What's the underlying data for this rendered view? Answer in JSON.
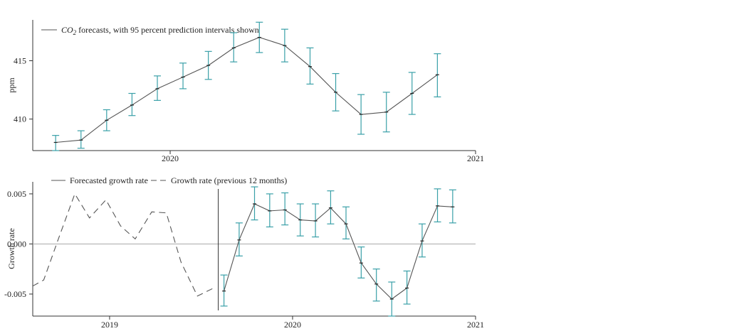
{
  "chart_data": [
    {
      "type": "line",
      "title": "",
      "legend": {
        "text_main": "CO",
        "text_sub": "2",
        "text_rest": " forecasts, with 95 percent prediction intervals shown",
        "placement": "top-left",
        "color": "#555555"
      },
      "ylabel": "ppm",
      "xlabel": "",
      "ylim": [
        407.3,
        418.5
      ],
      "xlim": [
        2019.55,
        2021.0
      ],
      "x_ticks": [
        {
          "value": 2020,
          "label": "2020"
        },
        {
          "value": 2021,
          "label": "2021"
        }
      ],
      "y_ticks": [
        {
          "value": 410,
          "label": "410"
        },
        {
          "value": 415,
          "label": "415"
        }
      ],
      "error_color": "#3aa0a8",
      "series": [
        {
          "name": "CO2 forecasts",
          "x": [
            2019.625,
            2019.708,
            2019.792,
            2019.875,
            2019.958,
            2020.042,
            2020.125,
            2020.208,
            2020.292,
            2020.375,
            2020.458,
            2020.542,
            2020.625,
            2020.708,
            2020.792,
            2020.875
          ],
          "values": [
            408.0,
            408.2,
            409.9,
            411.2,
            412.6,
            413.6,
            414.6,
            416.1,
            417.0,
            416.3,
            414.5,
            412.3,
            410.4,
            410.6,
            412.2,
            413.8
          ],
          "lower": [
            407.3,
            407.5,
            409.0,
            410.3,
            411.6,
            412.6,
            413.4,
            414.9,
            415.7,
            414.9,
            413.0,
            410.7,
            408.7,
            408.9,
            410.4,
            411.9
          ],
          "upper": [
            408.6,
            409.0,
            410.8,
            412.2,
            413.7,
            414.8,
            415.8,
            417.4,
            418.3,
            417.7,
            416.1,
            413.9,
            412.1,
            412.3,
            414.0,
            415.6
          ]
        }
      ]
    },
    {
      "type": "line",
      "title": "",
      "legend": {
        "entries": [
          {
            "label": "Forecasted growth rate",
            "style": "solid"
          },
          {
            "label": "Growth rate (previous 12 months)",
            "style": "dashed"
          }
        ],
        "placement": "top-left"
      },
      "ylabel": "Growth rate",
      "xlabel": "",
      "ylim": [
        -0.0072,
        0.0062
      ],
      "xlim": [
        2018.58,
        2021.0
      ],
      "x_ticks": [
        {
          "value": 2019,
          "label": "2019"
        },
        {
          "value": 2020,
          "label": "2020"
        },
        {
          "value": 2021,
          "label": "2021"
        }
      ],
      "y_ticks": [
        {
          "value": 0.005,
          "label": "0.005"
        },
        {
          "value": 0.0,
          "label": "0.000"
        },
        {
          "value": -0.005,
          "label": "-0.005"
        }
      ],
      "forecast_start_marker": 2019.625,
      "error_color": "#3aa0a8",
      "series": [
        {
          "name": "Growth rate (previous 12 months)",
          "style": "dashed",
          "x": [
            2018.58,
            2018.64,
            2018.72,
            2018.81,
            2018.89,
            2018.98,
            2019.06,
            2019.14,
            2019.23,
            2019.31,
            2019.39,
            2019.48,
            2019.58
          ],
          "values": [
            -0.0042,
            -0.0036,
            0.0005,
            0.005,
            0.0026,
            0.0044,
            0.0018,
            0.0005,
            0.0032,
            0.0031,
            -0.0018,
            -0.0052,
            -0.0043
          ]
        },
        {
          "name": "Forecasted growth rate",
          "style": "solid",
          "x": [
            2019.625,
            2019.708,
            2019.792,
            2019.875,
            2019.958,
            2020.042,
            2020.125,
            2020.208,
            2020.292,
            2020.375,
            2020.458,
            2020.542,
            2020.625,
            2020.708,
            2020.792,
            2020.875
          ],
          "values": [
            -0.0047,
            0.0004,
            0.004,
            0.0033,
            0.0034,
            0.0024,
            0.0023,
            0.0036,
            0.002,
            -0.0019,
            -0.004,
            -0.0055,
            -0.0044,
            0.0003,
            0.0038,
            0.0037
          ],
          "lower": [
            -0.0062,
            -0.0012,
            0.0024,
            0.0017,
            0.0019,
            0.0008,
            0.0007,
            0.002,
            0.0005,
            -0.0034,
            -0.0057,
            -0.0072,
            -0.006,
            -0.0013,
            0.0022,
            0.0021
          ],
          "upper": [
            -0.0031,
            0.0021,
            0.0057,
            0.005,
            0.0051,
            0.004,
            0.004,
            0.0053,
            0.0037,
            -0.0003,
            -0.0025,
            -0.0038,
            -0.0027,
            0.002,
            0.0055,
            0.0054
          ]
        }
      ]
    }
  ]
}
